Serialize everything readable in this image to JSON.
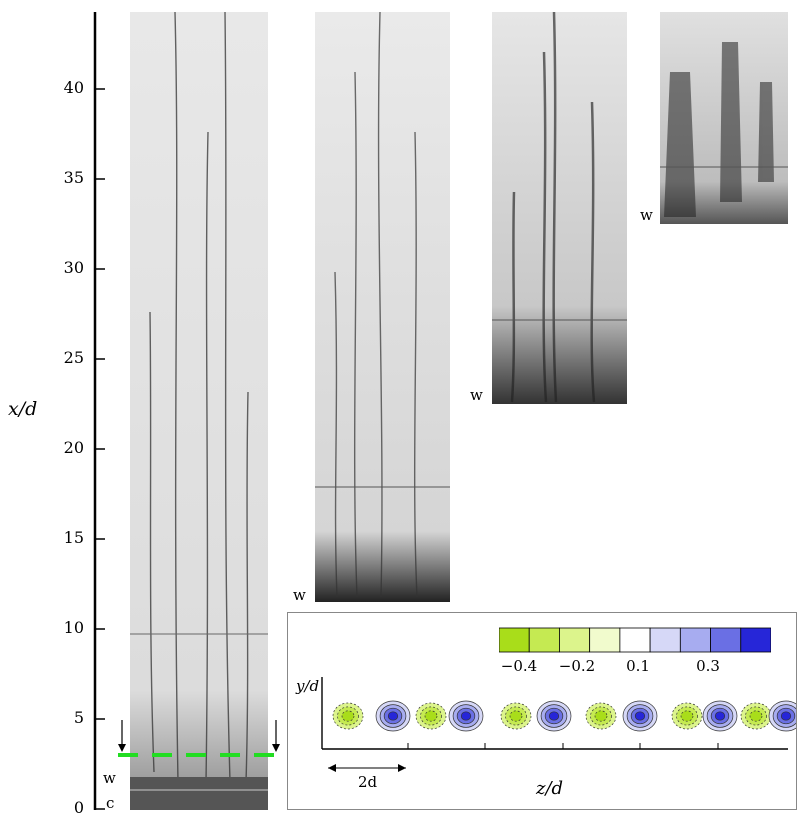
{
  "axis": {
    "ylabel": "x/d",
    "ticks": [
      "0",
      "5",
      "10",
      "15",
      "20",
      "25",
      "30",
      "35",
      "40"
    ]
  },
  "photos": [
    {
      "letter_w": "w",
      "letter_c": "c"
    },
    {
      "letter_w": "w"
    },
    {
      "letter_w": "w"
    },
    {
      "letter_w": "w"
    }
  ],
  "inset": {
    "ylabel": "y/d",
    "xlabel": "z/d",
    "scale_label": "2d",
    "colorbar_labels": [
      "−0.4",
      "−0.2",
      "0.1",
      "0.3"
    ],
    "colorbar_colors": [
      "#a9dd1a",
      "#c5ea52",
      "#dcf48c",
      "#f1fbcd",
      "#ffffff",
      "#d6d8f7",
      "#a7acf0",
      "#6a6fe4",
      "#2626d8"
    ]
  }
}
